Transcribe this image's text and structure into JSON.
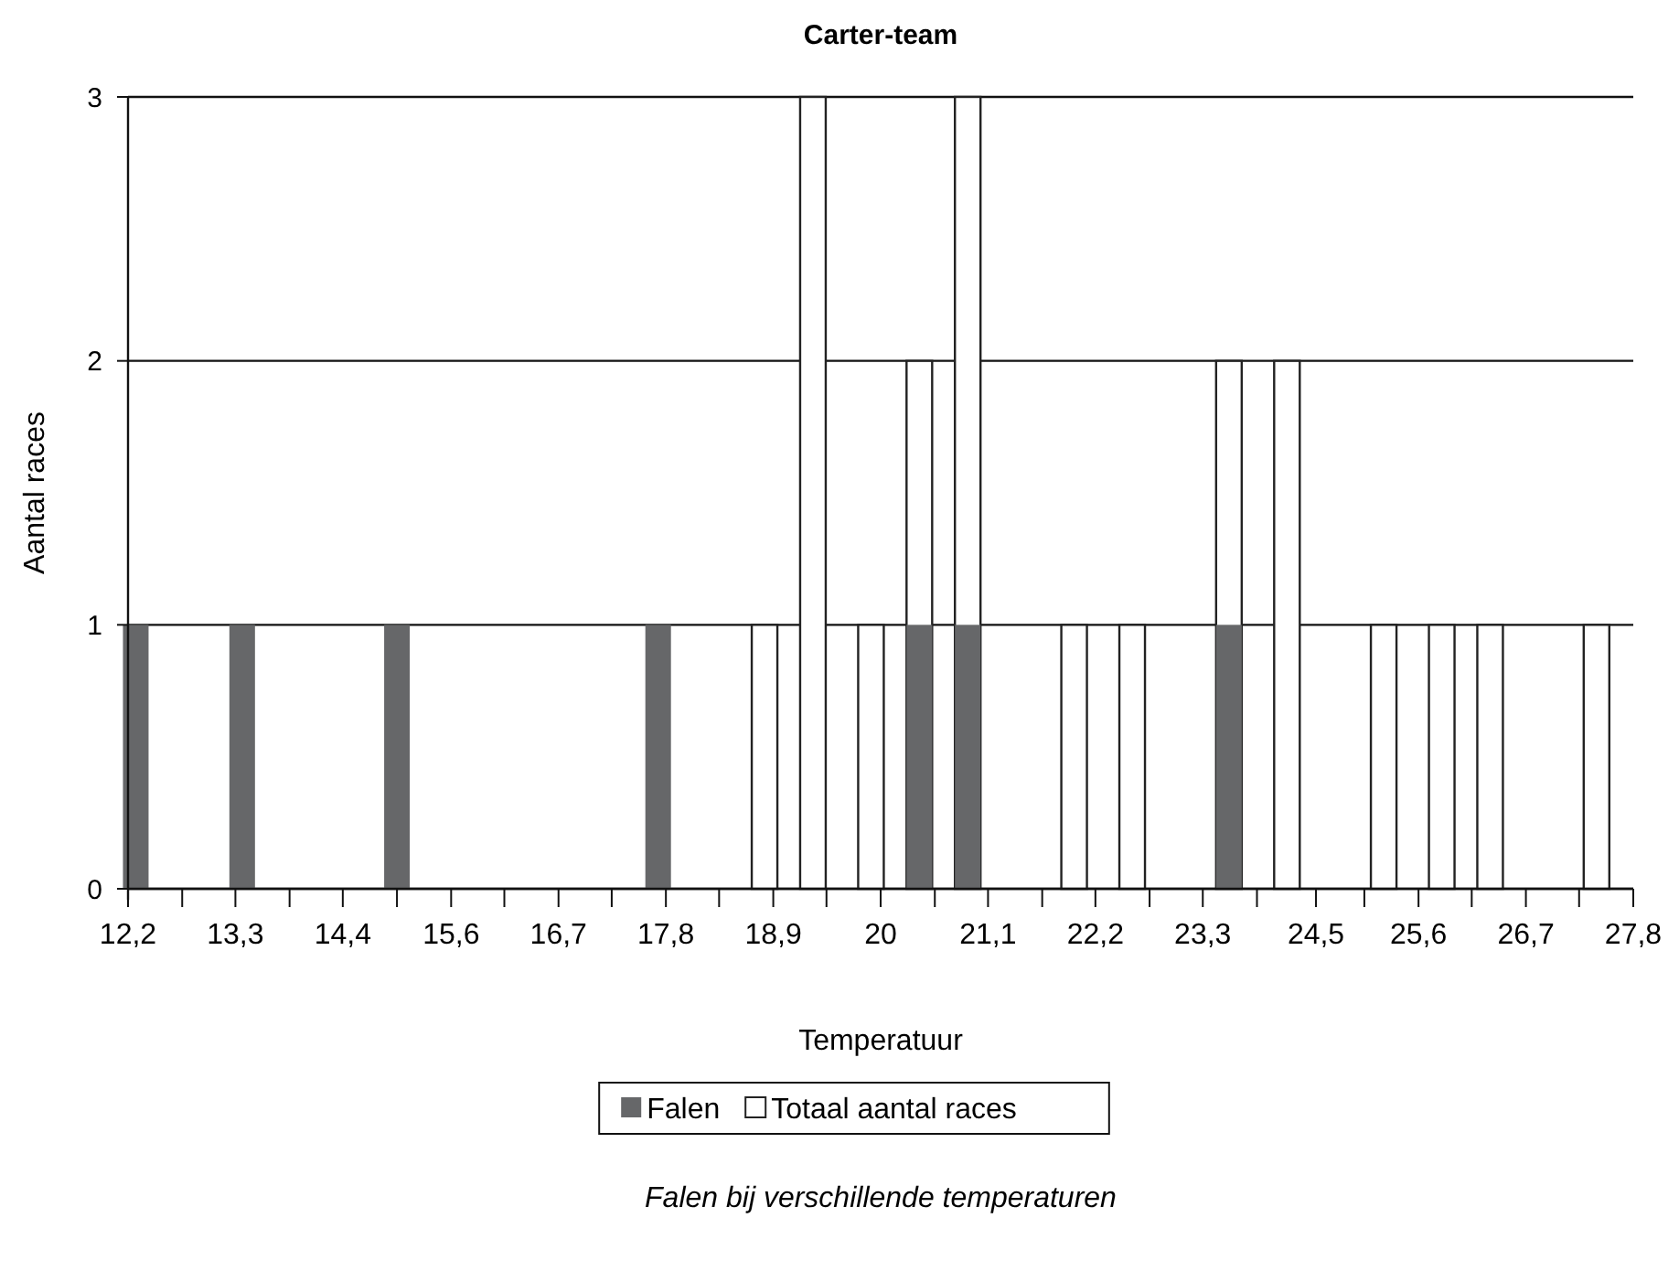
{
  "chart_data": {
    "type": "bar",
    "title": "Carter-team",
    "xlabel": "Temperatuur",
    "ylabel": "Aantal races",
    "annotations": [
      "Falen bij verschillende temperaturen"
    ],
    "x": [
      12.3,
      13.4,
      15.0,
      17.7,
      18.8,
      19.3,
      19.9,
      20.4,
      20.9,
      22.0,
      22.6,
      23.6,
      24.2,
      25.2,
      25.8,
      26.3,
      27.4
    ],
    "series": [
      {
        "name": "Falen",
        "color": "#666769",
        "values": [
          1,
          1,
          1,
          1,
          null,
          null,
          null,
          1,
          1,
          null,
          null,
          1,
          null,
          null,
          null,
          null,
          null
        ]
      },
      {
        "name": "Totaal aantal races",
        "color": "#ffffff",
        "values": [
          null,
          null,
          null,
          null,
          1,
          3,
          1,
          2,
          3,
          1,
          1,
          2,
          2,
          1,
          1,
          1,
          1
        ]
      }
    ],
    "xlim": [
      12.22,
      27.78
    ],
    "xticks": [
      {
        "value": 12.22,
        "label": "12,2"
      },
      {
        "value": 12.78,
        "label": null
      },
      {
        "value": 13.33,
        "label": "13,3"
      },
      {
        "value": 13.89,
        "label": null
      },
      {
        "value": 14.44,
        "label": "14,4"
      },
      {
        "value": 15.0,
        "label": null
      },
      {
        "value": 15.56,
        "label": "15,6"
      },
      {
        "value": 16.11,
        "label": null
      },
      {
        "value": 16.67,
        "label": "16,7"
      },
      {
        "value": 17.22,
        "label": null
      },
      {
        "value": 17.78,
        "label": "17,8"
      },
      {
        "value": 18.33,
        "label": null
      },
      {
        "value": 18.89,
        "label": "18,9"
      },
      {
        "value": 19.44,
        "label": null
      },
      {
        "value": 20,
        "label": "20"
      },
      {
        "value": 20.56,
        "label": null
      },
      {
        "value": 21.11,
        "label": "21,1"
      },
      {
        "value": 21.67,
        "label": null
      },
      {
        "value": 22.22,
        "label": "22,2"
      },
      {
        "value": 22.78,
        "label": null
      },
      {
        "value": 23.33,
        "label": "23,3"
      },
      {
        "value": 23.89,
        "label": null
      },
      {
        "value": 24.5,
        "label": "24,5"
      },
      {
        "value": 25.0,
        "label": null
      },
      {
        "value": 25.56,
        "label": "25,6"
      },
      {
        "value": 26.11,
        "label": null
      },
      {
        "value": 26.67,
        "label": "26,7"
      },
      {
        "value": 27.22,
        "label": null
      },
      {
        "value": 27.78,
        "label": "27,8"
      }
    ],
    "ylim": [
      0,
      3
    ],
    "yticks": [
      0,
      1,
      2,
      3
    ],
    "grid": "y",
    "legend": "bottom"
  }
}
